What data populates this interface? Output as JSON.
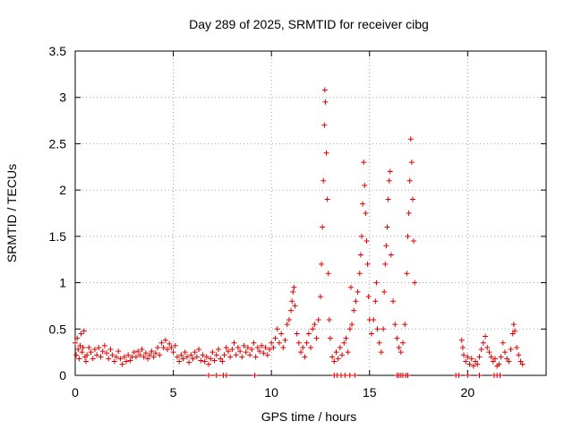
{
  "chart_data": {
    "type": "scatter",
    "title": "Day 289 of 2025, SRMTID for receiver cibg",
    "xlabel": "GPS time / hours",
    "ylabel": "SRMTID / TECUs",
    "xlim": [
      0,
      24
    ],
    "ylim": [
      0,
      3.5
    ],
    "xticks": [
      0,
      5,
      10,
      15,
      20
    ],
    "xtick_labels": [
      "0",
      "5",
      "10",
      "15",
      "20"
    ],
    "yticks": [
      0,
      0.5,
      1,
      1.5,
      2,
      2.5,
      3,
      3.5
    ],
    "ytick_labels": [
      "0",
      "0.5",
      "1",
      "1.5",
      "2",
      "2.5",
      "3",
      "3.5"
    ],
    "grid": true,
    "marker": "+",
    "color": "#e00000",
    "series": [
      {
        "name": "SRMTID",
        "points": [
          [
            0.0,
            0.35
          ],
          [
            0.05,
            0.22
          ],
          [
            0.1,
            0.4
          ],
          [
            0.15,
            0.28
          ],
          [
            0.2,
            0.18
          ],
          [
            0.25,
            0.32
          ],
          [
            0.3,
            0.45
          ],
          [
            0.35,
            0.25
          ],
          [
            0.4,
            0.3
          ],
          [
            0.45,
            0.48
          ],
          [
            0.5,
            0.2
          ],
          [
            0.55,
            0.15
          ],
          [
            0.6,
            0.22
          ],
          [
            0.7,
            0.3
          ],
          [
            0.8,
            0.25
          ],
          [
            0.9,
            0.18
          ],
          [
            1.0,
            0.28
          ],
          [
            1.1,
            0.22
          ],
          [
            1.2,
            0.3
          ],
          [
            1.3,
            0.2
          ],
          [
            1.4,
            0.26
          ],
          [
            1.5,
            0.32
          ],
          [
            1.6,
            0.24
          ],
          [
            1.7,
            0.18
          ],
          [
            1.8,
            0.28
          ],
          [
            1.9,
            0.22
          ],
          [
            2.0,
            0.15
          ],
          [
            2.1,
            0.2
          ],
          [
            2.2,
            0.26
          ],
          [
            2.3,
            0.18
          ],
          [
            2.4,
            0.12
          ],
          [
            2.5,
            0.2
          ],
          [
            2.6,
            0.15
          ],
          [
            2.7,
            0.22
          ],
          [
            2.8,
            0.16
          ],
          [
            2.9,
            0.2
          ],
          [
            3.0,
            0.25
          ],
          [
            3.1,
            0.2
          ],
          [
            3.2,
            0.26
          ],
          [
            3.3,
            0.22
          ],
          [
            3.4,
            0.28
          ],
          [
            3.5,
            0.2
          ],
          [
            3.6,
            0.24
          ],
          [
            3.7,
            0.18
          ],
          [
            3.8,
            0.22
          ],
          [
            3.9,
            0.26
          ],
          [
            4.0,
            0.2
          ],
          [
            4.1,
            0.24
          ],
          [
            4.2,
            0.3
          ],
          [
            4.3,
            0.22
          ],
          [
            4.4,
            0.35
          ],
          [
            4.5,
            0.3
          ],
          [
            4.6,
            0.38
          ],
          [
            4.7,
            0.28
          ],
          [
            4.8,
            0.34
          ],
          [
            4.9,
            0.3
          ],
          [
            5.0,
            0.25
          ],
          [
            5.1,
            0.32
          ],
          [
            5.2,
            0.2
          ],
          [
            5.3,
            0.15
          ],
          [
            5.4,
            0.22
          ],
          [
            5.5,
            0.18
          ],
          [
            5.6,
            0.25
          ],
          [
            5.7,
            0.2
          ],
          [
            5.8,
            0.14
          ],
          [
            5.9,
            0.22
          ],
          [
            6.0,
            0.18
          ],
          [
            6.1,
            0.25
          ],
          [
            6.2,
            0.2
          ],
          [
            6.3,
            0.28
          ],
          [
            6.4,
            0.16
          ],
          [
            6.5,
            0.22
          ],
          [
            6.6,
            0.15
          ],
          [
            6.7,
            0.2
          ],
          [
            6.8,
            0.12
          ],
          [
            6.9,
            0.18
          ],
          [
            7.0,
            0.25
          ],
          [
            7.1,
            0.16
          ],
          [
            7.2,
            0.22
          ],
          [
            7.3,
            0.28
          ],
          [
            7.4,
            0.18
          ],
          [
            7.5,
            0.15
          ],
          [
            7.6,
            0.22
          ],
          [
            7.7,
            0.3
          ],
          [
            7.8,
            0.26
          ],
          [
            7.9,
            0.2
          ],
          [
            8.0,
            0.28
          ],
          [
            8.1,
            0.35
          ],
          [
            8.2,
            0.22
          ],
          [
            8.3,
            0.3
          ],
          [
            8.4,
            0.26
          ],
          [
            8.5,
            0.2
          ],
          [
            8.6,
            0.32
          ],
          [
            8.7,
            0.25
          ],
          [
            8.8,
            0.3
          ],
          [
            8.9,
            0.22
          ],
          [
            9.0,
            0.28
          ],
          [
            9.1,
            0.35
          ],
          [
            9.2,
            0.2
          ],
          [
            9.3,
            0.3
          ],
          [
            9.4,
            0.26
          ],
          [
            9.5,
            0.32
          ],
          [
            9.6,
            0.24
          ],
          [
            9.7,
            0.3
          ],
          [
            9.8,
            0.22
          ],
          [
            9.9,
            0.28
          ],
          [
            10.0,
            0.35
          ],
          [
            10.1,
            0.3
          ],
          [
            10.2,
            0.4
          ],
          [
            10.3,
            0.5
          ],
          [
            10.4,
            0.35
          ],
          [
            10.5,
            0.45
          ],
          [
            10.6,
            0.3
          ],
          [
            10.7,
            0.38
          ],
          [
            10.8,
            0.55
          ],
          [
            10.9,
            0.6
          ],
          [
            11.0,
            0.7
          ],
          [
            11.05,
            0.8
          ],
          [
            11.1,
            0.9
          ],
          [
            11.15,
            0.95
          ],
          [
            11.2,
            0.75
          ],
          [
            11.3,
            0.45
          ],
          [
            11.4,
            0.35
          ],
          [
            11.5,
            0.25
          ],
          [
            11.6,
            0.3
          ],
          [
            11.7,
            0.2
          ],
          [
            11.8,
            0.35
          ],
          [
            11.9,
            0.45
          ],
          [
            12.0,
            0.3
          ],
          [
            12.1,
            0.5
          ],
          [
            12.2,
            0.55
          ],
          [
            12.3,
            0.4
          ],
          [
            12.4,
            0.6
          ],
          [
            12.5,
            0.85
          ],
          [
            12.55,
            1.2
          ],
          [
            12.6,
            1.6
          ],
          [
            12.65,
            2.1
          ],
          [
            12.7,
            2.7
          ],
          [
            12.72,
            3.08
          ],
          [
            12.75,
            2.95
          ],
          [
            12.8,
            2.4
          ],
          [
            12.85,
            1.9
          ],
          [
            12.9,
            1.1
          ],
          [
            12.95,
            0.6
          ],
          [
            13.0,
            0.4
          ],
          [
            13.1,
            0.2
          ],
          [
            13.2,
            0.15
          ],
          [
            13.3,
            0.25
          ],
          [
            13.4,
            0.18
          ],
          [
            13.5,
            0.3
          ],
          [
            13.6,
            0.22
          ],
          [
            13.7,
            0.35
          ],
          [
            13.8,
            0.4
          ],
          [
            13.9,
            0.25
          ],
          [
            14.0,
            0.5
          ],
          [
            14.05,
            0.95
          ],
          [
            14.1,
            0.55
          ],
          [
            14.2,
            0.7
          ],
          [
            14.3,
            0.8
          ],
          [
            14.4,
            0.9
          ],
          [
            14.5,
            1.1
          ],
          [
            14.55,
            1.3
          ],
          [
            14.6,
            1.5
          ],
          [
            14.65,
            1.85
          ],
          [
            14.7,
            2.3
          ],
          [
            14.75,
            2.05
          ],
          [
            14.8,
            1.75
          ],
          [
            14.85,
            1.45
          ],
          [
            14.9,
            1.2
          ],
          [
            14.95,
            0.85
          ],
          [
            15.0,
            0.6
          ],
          [
            15.1,
            0.45
          ],
          [
            15.2,
            0.6
          ],
          [
            15.3,
            0.8
          ],
          [
            15.35,
            1.0
          ],
          [
            15.4,
            0.5
          ],
          [
            15.5,
            0.35
          ],
          [
            15.6,
            0.25
          ],
          [
            15.7,
            0.5
          ],
          [
            15.75,
            0.9
          ],
          [
            15.8,
            1.2
          ],
          [
            15.85,
            1.4
          ],
          [
            15.9,
            1.6
          ],
          [
            15.95,
            1.9
          ],
          [
            16.0,
            2.1
          ],
          [
            16.05,
            2.2
          ],
          [
            16.1,
            1.3
          ],
          [
            16.2,
            0.8
          ],
          [
            16.3,
            0.55
          ],
          [
            16.4,
            0.4
          ],
          [
            16.5,
            0.3
          ],
          [
            16.6,
            0.25
          ],
          [
            16.7,
            0.35
          ],
          [
            16.8,
            0.55
          ],
          [
            16.9,
            1.1
          ],
          [
            16.95,
            1.5
          ],
          [
            17.0,
            1.75
          ],
          [
            17.05,
            2.1
          ],
          [
            17.1,
            2.55
          ],
          [
            17.15,
            2.3
          ],
          [
            17.2,
            1.9
          ],
          [
            17.25,
            1.45
          ],
          [
            17.3,
            1.0
          ],
          [
            19.7,
            0.38
          ],
          [
            19.75,
            0.3
          ],
          [
            19.8,
            0.22
          ],
          [
            19.9,
            0.15
          ],
          [
            20.0,
            0.2
          ],
          [
            20.1,
            0.12
          ],
          [
            20.2,
            0.18
          ],
          [
            20.3,
            0.1
          ],
          [
            20.4,
            0.15
          ],
          [
            20.5,
            0.12
          ],
          [
            20.6,
            0.2
          ],
          [
            20.7,
            0.28
          ],
          [
            20.8,
            0.35
          ],
          [
            20.9,
            0.42
          ],
          [
            21.0,
            0.3
          ],
          [
            21.1,
            0.25
          ],
          [
            21.2,
            0.2
          ],
          [
            21.3,
            0.15
          ],
          [
            21.4,
            0.18
          ],
          [
            21.5,
            0.1
          ],
          [
            21.6,
            0.12
          ],
          [
            21.7,
            0.2
          ],
          [
            21.8,
            0.35
          ],
          [
            21.9,
            0.25
          ],
          [
            22.0,
            0.18
          ],
          [
            22.1,
            0.15
          ],
          [
            22.2,
            0.28
          ],
          [
            22.3,
            0.45
          ],
          [
            22.35,
            0.55
          ],
          [
            22.4,
            0.48
          ],
          [
            22.5,
            0.3
          ],
          [
            22.6,
            0.22
          ],
          [
            22.7,
            0.15
          ],
          [
            22.8,
            0.12
          ]
        ]
      }
    ],
    "zero_points_x": [
      6.8,
      7.2,
      7.55,
      7.7,
      9.15,
      13.2,
      13.35,
      13.55,
      13.75,
      14.0,
      14.25,
      16.4,
      16.5,
      16.6,
      16.7,
      16.85,
      16.95,
      19.4,
      19.55,
      20.0,
      20.6,
      21.35,
      21.5,
      21.65
    ]
  }
}
